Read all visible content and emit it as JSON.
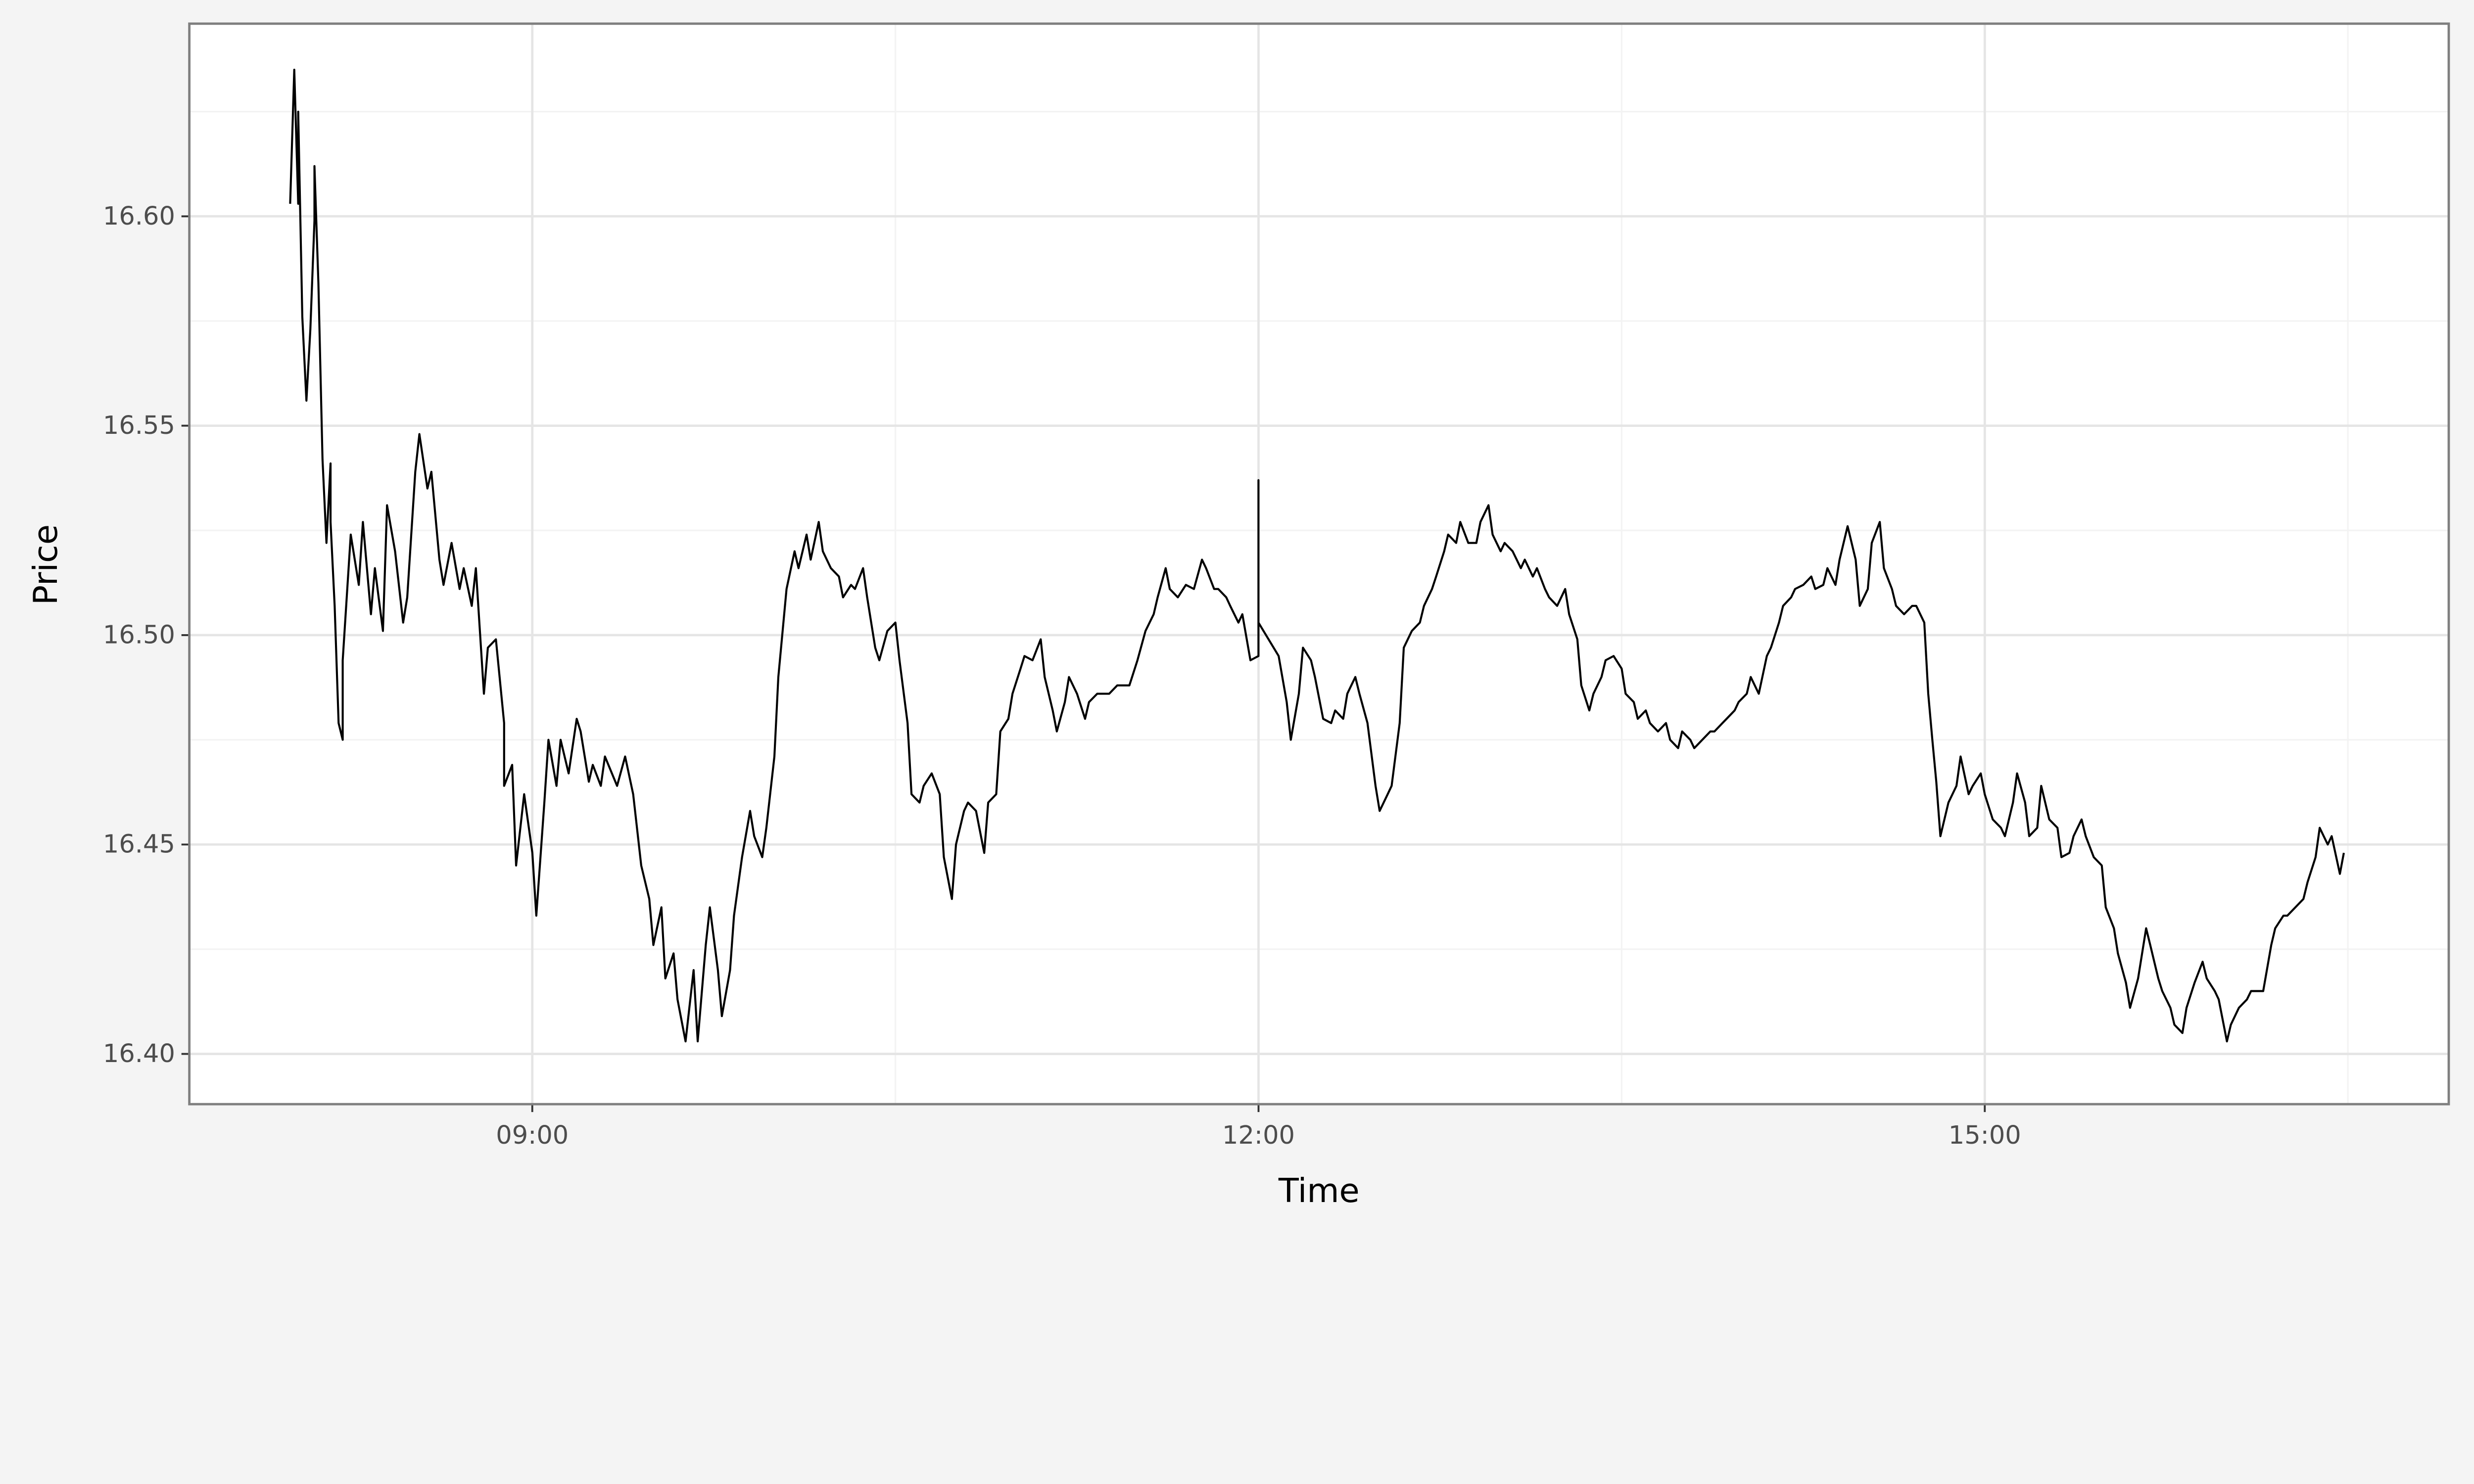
{
  "chart_data": {
    "type": "line",
    "title": "",
    "xlabel": "Time",
    "ylabel": "Price",
    "xlim": [
      "07:35",
      "16:55"
    ],
    "ylim": [
      16.388,
      16.646
    ],
    "grid": true,
    "line_color": "#000000",
    "panel_background": "#ffffff",
    "page_background": "#f4f4f4",
    "x_ticks": [
      "09:00",
      "12:00",
      "15:00"
    ],
    "x_minor_ticks": [
      "07:30",
      "10:30",
      "13:30",
      "16:30"
    ],
    "y_ticks": [
      "16.40",
      "16.45",
      "16.50",
      "16.55",
      "16.60"
    ],
    "y_minor_ticks": [
      16.425,
      16.475,
      16.525,
      16.575,
      16.625
    ],
    "x": [
      "08:00",
      "08:01",
      "08:02",
      "08:02",
      "08:03",
      "08:04",
      "08:05",
      "08:06",
      "08:06",
      "08:07",
      "08:08",
      "08:09",
      "08:10",
      "08:10",
      "08:11",
      "08:12",
      "08:13",
      "08:13",
      "08:15",
      "08:17",
      "08:18",
      "08:20",
      "08:21",
      "08:23",
      "08:24",
      "08:26",
      "08:28",
      "08:29",
      "08:31",
      "08:32",
      "08:34",
      "08:35",
      "08:37",
      "08:38",
      "08:40",
      "08:42",
      "08:43",
      "08:45",
      "08:46",
      "08:48",
      "08:49",
      "08:51",
      "08:53",
      "08:53",
      "08:55",
      "08:56",
      "08:58",
      "09:00",
      "09:01",
      "09:03",
      "09:04",
      "09:06",
      "09:07",
      "09:09",
      "09:11",
      "09:12",
      "09:14",
      "09:15",
      "09:17",
      "09:18",
      "09:21",
      "09:23",
      "09:25",
      "09:27",
      "09:29",
      "09:30",
      "09:32",
      "09:33",
      "09:35",
      "09:36",
      "09:38",
      "09:40",
      "09:41",
      "09:43",
      "09:44",
      "09:46",
      "09:47",
      "09:49",
      "09:50",
      "09:52",
      "09:54",
      "09:55",
      "09:57",
      "09:58",
      "10:00",
      "10:01",
      "10:03",
      "10:05",
      "10:06",
      "10:08",
      "10:09",
      "10:11",
      "10:12",
      "10:14",
      "10:16",
      "10:17",
      "10:19",
      "10:20",
      "10:22",
      "10:23",
      "10:25",
      "10:26",
      "10:28",
      "10:30",
      "10:31",
      "10:33",
      "10:34",
      "10:36",
      "10:37",
      "10:39",
      "10:41",
      "10:42",
      "10:44",
      "10:45",
      "10:47",
      "10:48",
      "10:50",
      "10:52",
      "10:53",
      "10:55",
      "10:56",
      "10:58",
      "10:59",
      "11:01",
      "11:02",
      "11:04",
      "11:06",
      "11:07",
      "11:09",
      "11:10",
      "11:12",
      "11:13",
      "11:15",
      "11:17",
      "11:18",
      "11:20",
      "11:23",
      "11:25",
      "11:28",
      "11:30",
      "11:32",
      "11:34",
      "11:35",
      "11:37",
      "11:38",
      "11:40",
      "11:42",
      "11:44",
      "11:46",
      "11:47",
      "11:49",
      "11:50",
      "11:52",
      "11:53",
      "11:55",
      "11:56",
      "11:58",
      "12:00",
      "12:00",
      "12:00",
      "12:05",
      "12:07",
      "12:08",
      "12:10",
      "12:11",
      "12:13",
      "12:14",
      "12:16",
      "12:18",
      "12:19",
      "12:21",
      "12:22",
      "12:24",
      "12:25",
      "12:27",
      "12:29",
      "12:30",
      "12:32",
      "12:33",
      "12:35",
      "12:36",
      "12:38",
      "12:40",
      "12:41",
      "12:43",
      "12:44",
      "12:46",
      "12:47",
      "12:49",
      "12:50",
      "12:52",
      "12:54",
      "12:55",
      "12:57",
      "12:58",
      "13:00",
      "13:01",
      "13:03",
      "13:05",
      "13:06",
      "13:08",
      "13:09",
      "13:11",
      "13:12",
      "13:14",
      "13:16",
      "13:17",
      "13:19",
      "13:20",
      "13:22",
      "13:23",
      "13:25",
      "13:26",
      "13:28",
      "13:30",
      "13:31",
      "13:33",
      "13:34",
      "13:36",
      "13:37",
      "13:39",
      "13:41",
      "13:42",
      "13:44",
      "13:45",
      "13:47",
      "13:48",
      "13:50",
      "13:52",
      "13:53",
      "13:55",
      "13:56",
      "13:58",
      "13:59",
      "14:01",
      "14:02",
      "14:04",
      "14:06",
      "14:07",
      "14:09",
      "14:10",
      "14:12",
      "14:13",
      "14:15",
      "14:17",
      "14:18",
      "14:20",
      "14:21",
      "14:23",
      "14:24",
      "14:26",
      "14:28",
      "14:29",
      "14:31",
      "14:32",
      "14:34",
      "14:35",
      "14:37",
      "14:38",
      "14:40",
      "14:42",
      "14:43",
      "14:45",
      "14:46",
      "14:47",
      "14:48",
      "14:49",
      "14:51",
      "14:53",
      "14:54",
      "14:56",
      "14:57",
      "14:59",
      "15:00",
      "15:02",
      "15:04",
      "15:05",
      "15:07",
      "15:08",
      "15:10",
      "15:11",
      "15:13",
      "15:14",
      "15:16",
      "15:18",
      "15:19",
      "15:21",
      "15:22",
      "15:24",
      "15:25",
      "15:27",
      "15:29",
      "15:30",
      "15:32",
      "15:33",
      "15:35",
      "15:36",
      "15:38",
      "15:40",
      "15:41",
      "15:43",
      "15:44",
      "15:46",
      "15:47",
      "15:49",
      "15:50",
      "15:52",
      "15:54",
      "15:55",
      "15:57",
      "15:58",
      "16:00",
      "16:01",
      "16:03",
      "16:05",
      "16:06",
      "16:09",
      "16:11",
      "16:12",
      "16:14",
      "16:15",
      "16:17",
      "16:19",
      "16:20",
      "16:22",
      "16:23",
      "16:25",
      "16:26",
      "16:28",
      "16:29"
    ],
    "y": [
      16.603,
      16.635,
      16.603,
      16.625,
      16.576,
      16.556,
      16.573,
      16.599,
      16.612,
      16.584,
      16.542,
      16.522,
      16.541,
      16.527,
      16.507,
      16.479,
      16.475,
      16.494,
      16.524,
      16.512,
      16.527,
      16.505,
      16.516,
      16.501,
      16.531,
      16.52,
      16.503,
      16.509,
      16.539,
      16.548,
      16.535,
      16.539,
      16.518,
      16.512,
      16.522,
      16.511,
      16.516,
      16.507,
      16.516,
      16.486,
      16.497,
      16.499,
      16.479,
      16.464,
      16.469,
      16.445,
      16.462,
      16.448,
      16.433,
      16.46,
      16.475,
      16.464,
      16.475,
      16.467,
      16.48,
      16.477,
      16.465,
      16.469,
      16.464,
      16.471,
      16.464,
      16.471,
      16.462,
      16.445,
      16.437,
      16.426,
      16.435,
      16.418,
      16.424,
      16.413,
      16.403,
      16.42,
      16.403,
      16.426,
      16.435,
      16.42,
      16.409,
      16.42,
      16.433,
      16.447,
      16.458,
      16.452,
      16.447,
      16.454,
      16.471,
      16.49,
      16.511,
      16.52,
      16.516,
      16.524,
      16.518,
      16.527,
      16.52,
      16.516,
      16.514,
      16.509,
      16.512,
      16.511,
      16.516,
      16.509,
      16.497,
      16.494,
      16.501,
      16.503,
      16.494,
      16.479,
      16.462,
      16.46,
      16.464,
      16.467,
      16.462,
      16.447,
      16.437,
      16.45,
      16.458,
      16.46,
      16.458,
      16.448,
      16.46,
      16.462,
      16.477,
      16.48,
      16.486,
      16.492,
      16.495,
      16.494,
      16.499,
      16.49,
      16.482,
      16.477,
      16.484,
      16.49,
      16.486,
      16.48,
      16.484,
      16.486,
      16.486,
      16.488,
      16.488,
      16.494,
      16.501,
      16.505,
      16.509,
      16.516,
      16.511,
      16.509,
      16.512,
      16.511,
      16.518,
      16.516,
      16.511,
      16.511,
      16.509,
      16.507,
      16.503,
      16.505,
      16.494,
      16.495,
      16.537,
      16.503,
      16.495,
      16.484,
      16.475,
      16.486,
      16.497,
      16.494,
      16.49,
      16.48,
      16.479,
      16.482,
      16.48,
      16.486,
      16.49,
      16.486,
      16.479,
      16.464,
      16.458,
      16.462,
      16.464,
      16.479,
      16.497,
      16.501,
      16.503,
      16.507,
      16.511,
      16.514,
      16.52,
      16.524,
      16.522,
      16.527,
      16.522,
      16.522,
      16.527,
      16.531,
      16.524,
      16.52,
      16.522,
      16.52,
      16.516,
      16.518,
      16.514,
      16.516,
      16.511,
      16.509,
      16.507,
      16.511,
      16.505,
      16.499,
      16.488,
      16.482,
      16.486,
      16.49,
      16.494,
      16.495,
      16.492,
      16.486,
      16.484,
      16.48,
      16.482,
      16.479,
      16.477,
      16.479,
      16.475,
      16.473,
      16.477,
      16.475,
      16.473,
      16.475,
      16.477,
      16.477,
      16.479,
      16.48,
      16.482,
      16.484,
      16.486,
      16.49,
      16.486,
      16.495,
      16.497,
      16.503,
      16.507,
      16.509,
      16.511,
      16.512,
      16.514,
      16.511,
      16.512,
      16.516,
      16.512,
      16.518,
      16.526,
      16.518,
      16.507,
      16.511,
      16.522,
      16.527,
      16.516,
      16.511,
      16.507,
      16.505,
      16.507,
      16.507,
      16.503,
      16.486,
      16.475,
      16.465,
      16.452,
      16.46,
      16.464,
      16.471,
      16.462,
      16.464,
      16.467,
      16.462,
      16.456,
      16.454,
      16.452,
      16.46,
      16.467,
      16.46,
      16.452,
      16.454,
      16.464,
      16.456,
      16.454,
      16.447,
      16.448,
      16.452,
      16.456,
      16.452,
      16.447,
      16.445,
      16.435,
      16.43,
      16.424,
      16.417,
      16.411,
      16.418,
      16.43,
      16.426,
      16.418,
      16.415,
      16.411,
      16.407,
      16.405,
      16.411,
      16.417,
      16.422,
      16.418,
      16.415,
      16.413,
      16.403,
      16.407,
      16.411,
      16.413,
      16.415,
      16.415,
      16.426,
      16.43,
      16.433,
      16.433,
      16.435,
      16.437,
      16.441,
      16.447,
      16.454,
      16.45,
      16.452,
      16.443,
      16.448
    ]
  }
}
